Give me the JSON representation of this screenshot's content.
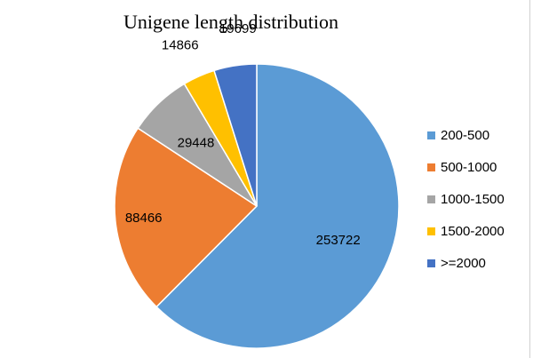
{
  "chart_data": {
    "type": "pie",
    "title": "Unigene length distribution",
    "categories": [
      "200-500",
      "500-1000",
      "1000-1500",
      "1500-2000",
      ">=2000"
    ],
    "values": [
      253722,
      88466,
      29448,
      14866,
      19699
    ],
    "colors": [
      "#5b9bd5",
      "#ed7d31",
      "#a5a5a5",
      "#ffc000",
      "#4472c4"
    ],
    "start_angle_deg": 0,
    "direction": "clockwise",
    "legend_position": "right"
  }
}
